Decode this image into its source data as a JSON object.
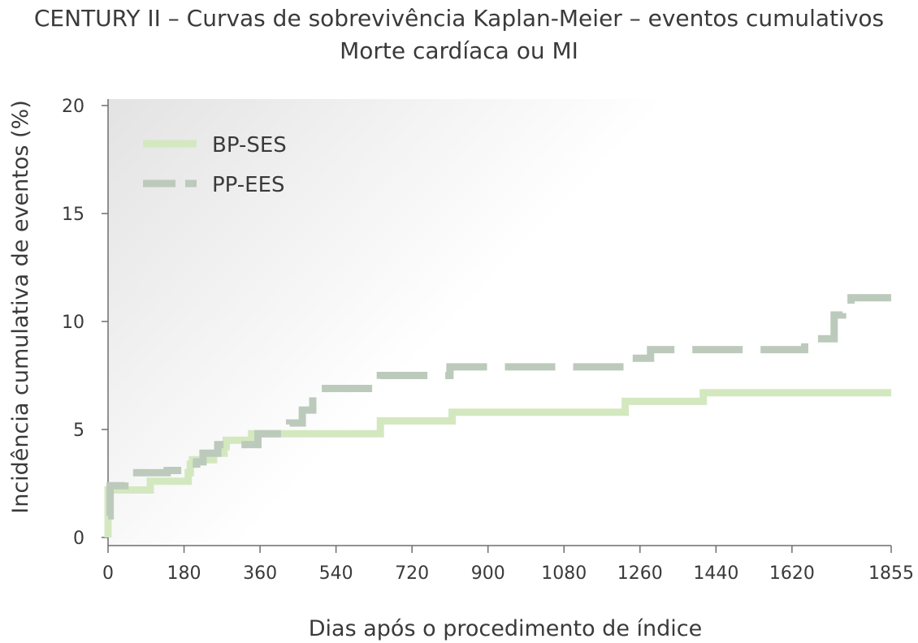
{
  "chart_data": {
    "type": "line",
    "subtype": "kaplan-meier step",
    "title": "CENTURY II – Curvas de sobrevivência Kaplan-Meier – eventos cumulativos",
    "subtitle": "Morte cardíaca ou MI",
    "xlabel": "Dias após o procedimento de índice",
    "ylabel": "Incidência cumulativa de eventos (%)",
    "xlim": [
      0,
      1855
    ],
    "ylim": [
      0,
      20
    ],
    "x_ticks": [
      "0",
      "180",
      "360",
      "540",
      "720",
      "900",
      "1080",
      "1260",
      "1440",
      "1620",
      "1855"
    ],
    "x_tick_values": [
      0,
      180,
      360,
      540,
      720,
      900,
      1080,
      1260,
      1440,
      1620,
      1855
    ],
    "y_ticks": [
      "0",
      "5",
      "10",
      "15",
      "20"
    ],
    "y_tick_values": [
      0,
      5,
      10,
      15,
      20
    ],
    "grid": false,
    "legend_position": "top-left",
    "series": [
      {
        "name": "BP-SES",
        "color": "#d4e8c0",
        "dash": "solid",
        "points": [
          [
            0,
            0
          ],
          [
            0,
            2.2
          ],
          [
            100,
            2.2
          ],
          [
            100,
            2.6
          ],
          [
            190,
            2.6
          ],
          [
            190,
            3.0
          ],
          [
            195,
            3.0
          ],
          [
            195,
            3.4
          ],
          [
            200,
            3.4
          ],
          [
            200,
            3.6
          ],
          [
            250,
            3.6
          ],
          [
            250,
            3.9
          ],
          [
            275,
            3.9
          ],
          [
            275,
            4.2
          ],
          [
            280,
            4.2
          ],
          [
            280,
            4.5
          ],
          [
            340,
            4.5
          ],
          [
            340,
            4.8
          ],
          [
            645,
            4.8
          ],
          [
            645,
            5.4
          ],
          [
            815,
            5.4
          ],
          [
            815,
            5.8
          ],
          [
            1225,
            5.8
          ],
          [
            1225,
            6.3
          ],
          [
            1410,
            6.3
          ],
          [
            1410,
            6.7
          ],
          [
            1855,
            6.7
          ]
        ]
      },
      {
        "name": "PP-EES",
        "color": "#bccabc",
        "dash": "dashed",
        "points": [
          [
            0,
            1.0
          ],
          [
            5,
            1.0
          ],
          [
            5,
            2.4
          ],
          [
            40,
            2.4
          ],
          [
            40,
            3.0
          ],
          [
            140,
            3.0
          ],
          [
            140,
            3.1
          ],
          [
            185,
            3.1
          ],
          [
            185,
            3.4
          ],
          [
            210,
            3.4
          ],
          [
            210,
            3.5
          ],
          [
            225,
            3.5
          ],
          [
            225,
            3.9
          ],
          [
            260,
            3.9
          ],
          [
            260,
            4.3
          ],
          [
            355,
            4.3
          ],
          [
            355,
            4.8
          ],
          [
            430,
            4.8
          ],
          [
            430,
            5.3
          ],
          [
            460,
            5.3
          ],
          [
            460,
            5.9
          ],
          [
            485,
            5.9
          ],
          [
            485,
            6.9
          ],
          [
            645,
            6.9
          ],
          [
            645,
            7.5
          ],
          [
            810,
            7.5
          ],
          [
            810,
            7.9
          ],
          [
            1225,
            7.9
          ],
          [
            1225,
            8.3
          ],
          [
            1285,
            8.3
          ],
          [
            1285,
            8.7
          ],
          [
            1650,
            8.7
          ],
          [
            1650,
            9.2
          ],
          [
            1720,
            9.2
          ],
          [
            1720,
            10.3
          ],
          [
            1740,
            10.3
          ],
          [
            1740,
            10.8
          ],
          [
            1760,
            10.8
          ],
          [
            1760,
            11.1
          ],
          [
            1855,
            11.1
          ]
        ]
      }
    ]
  }
}
